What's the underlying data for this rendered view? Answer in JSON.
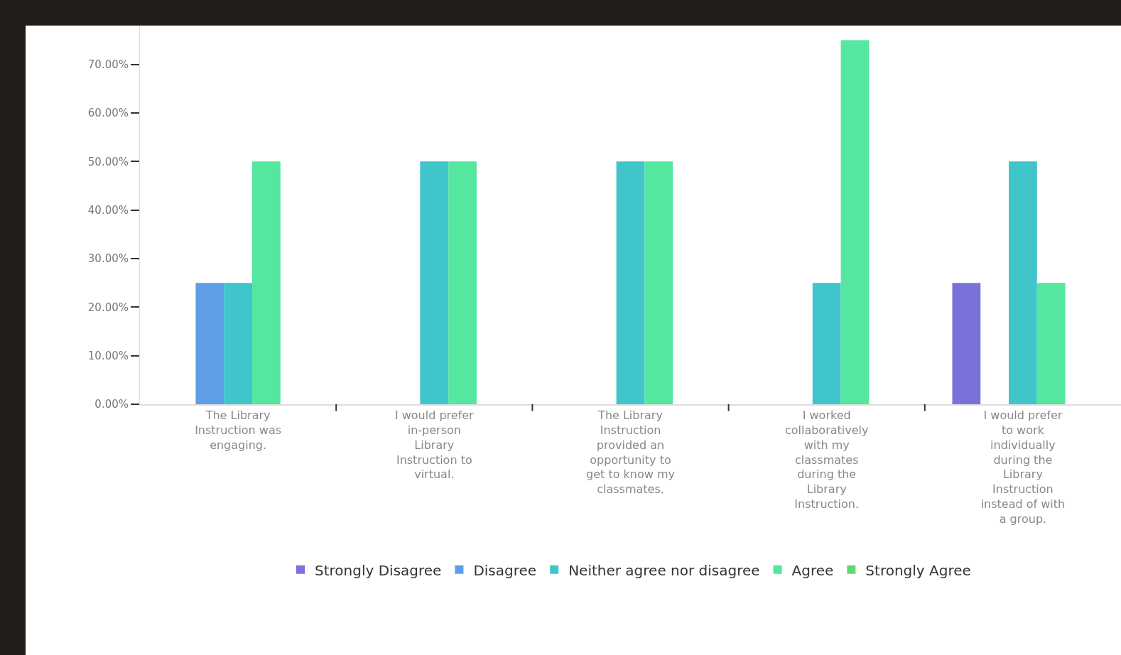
{
  "chart_data": {
    "type": "bar",
    "categories": [
      "The Library Instruction was engaging.",
      "I would prefer in-person Library Instruction to virtual.",
      "The Library Instruction provided an opportunity to get to know my classmates.",
      "I worked collaboratively with my classmates during the Library Instruction.",
      "I would prefer to work individually during the Library Instruction instead of with a group."
    ],
    "series": [
      {
        "name": "Strongly Disagree",
        "color": "#7b72d9",
        "values": [
          0,
          0,
          0,
          0,
          25
        ]
      },
      {
        "name": "Disagree",
        "color": "#5e9ee4",
        "values": [
          25,
          0,
          0,
          0,
          0
        ]
      },
      {
        "name": "Neither agree nor disagree",
        "color": "#40c5cb",
        "values": [
          25,
          50,
          50,
          25,
          50
        ]
      },
      {
        "name": "Agree",
        "color": "#55e6a0",
        "values": [
          50,
          50,
          50,
          75,
          25
        ]
      },
      {
        "name": "Strongly Agree",
        "color": "#5ed872",
        "values": [
          0,
          0,
          0,
          0,
          0
        ]
      }
    ],
    "ylim": [
      0,
      78
    ],
    "yticks": [
      {
        "value": 0,
        "label": "0.00%"
      },
      {
        "value": 10,
        "label": "10.00%"
      },
      {
        "value": 20,
        "label": "20.00%"
      },
      {
        "value": 30,
        "label": "30.00%"
      },
      {
        "value": 40,
        "label": "40.00%"
      },
      {
        "value": 50,
        "label": "50.00%"
      },
      {
        "value": 60,
        "label": "60.00%"
      },
      {
        "value": 70,
        "label": "70.00%"
      }
    ],
    "grid": false,
    "legend": "bottom"
  }
}
